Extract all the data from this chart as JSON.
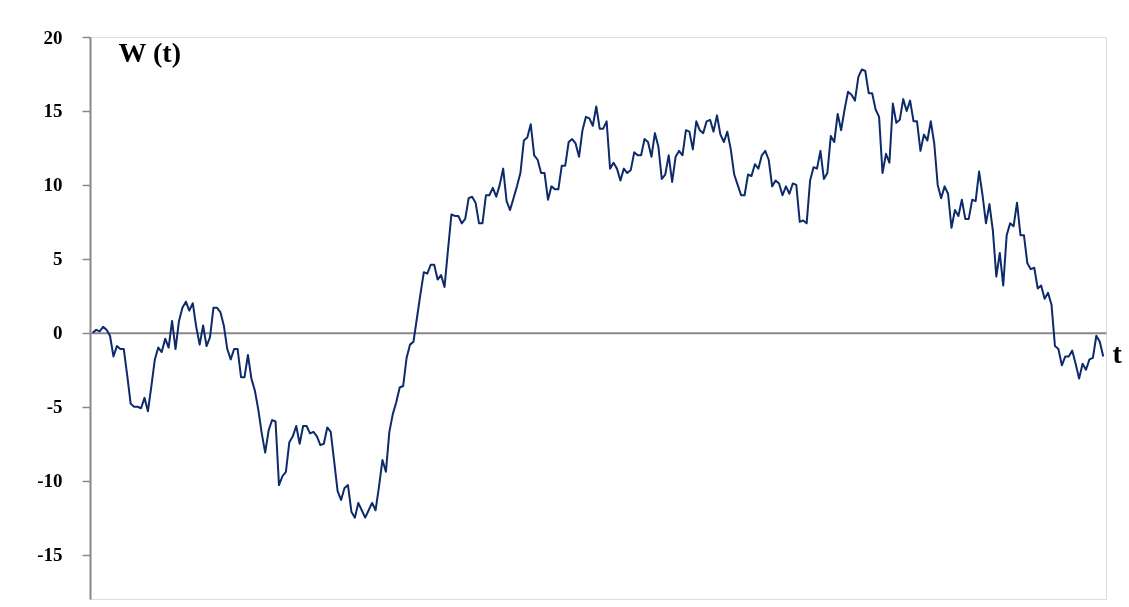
{
  "chart_data": {
    "type": "line",
    "xlabel": "t",
    "ylabel": "W (t)",
    "categories": [
      null,
      null,
      null,
      null,
      null,
      null,
      null,
      null,
      null,
      null,
      null,
      null,
      null,
      null,
      null,
      null,
      null,
      null,
      null,
      null,
      null,
      null,
      null,
      null,
      null,
      null,
      null,
      null,
      null,
      null,
      null,
      null,
      null,
      null,
      null,
      null,
      null,
      null,
      null,
      null,
      null,
      null,
      null,
      null,
      null,
      null,
      null,
      null,
      null,
      null,
      null,
      null,
      null,
      null,
      null,
      null,
      null,
      null,
      null,
      null,
      null,
      null,
      null,
      null,
      null,
      null,
      null,
      null,
      null,
      null,
      null,
      null,
      null,
      null,
      null,
      null,
      null,
      null,
      null,
      null,
      null,
      null,
      null,
      null,
      null,
      null,
      null,
      null,
      null,
      null,
      null,
      null,
      null,
      null,
      null,
      null,
      null,
      null,
      null,
      null,
      null,
      null,
      null,
      null,
      null,
      null,
      null,
      null,
      null,
      null,
      null,
      null,
      null,
      null,
      null,
      null,
      null,
      null,
      null,
      null,
      null,
      null,
      null,
      null,
      null,
      null,
      null,
      null,
      null,
      null,
      null,
      null,
      null,
      null,
      null,
      null,
      null,
      null,
      null,
      null,
      null,
      null,
      null,
      null,
      null,
      null,
      null,
      null,
      null,
      null,
      null,
      null,
      null,
      null,
      null,
      null,
      null,
      null,
      null,
      null,
      null,
      null,
      null,
      null,
      null,
      null,
      null,
      null,
      null,
      null,
      null,
      null,
      null,
      null,
      null,
      null,
      null,
      null,
      null,
      null,
      null,
      null,
      null,
      null,
      null,
      null,
      null,
      null,
      null,
      null,
      null,
      null,
      null,
      null,
      null,
      null,
      null,
      null,
      null,
      null,
      null,
      null,
      null,
      null,
      null,
      null,
      null,
      null,
      null,
      null,
      null,
      null,
      null,
      null,
      null,
      null,
      null,
      null,
      null,
      null,
      null,
      null,
      null,
      null,
      null,
      null,
      null,
      null,
      null,
      null,
      null,
      null,
      null,
      null,
      null,
      null,
      null,
      null,
      null,
      null,
      null,
      null,
      null,
      null,
      null,
      null,
      null,
      null,
      null,
      null,
      null,
      null,
      null,
      null,
      null,
      null,
      null,
      null,
      null,
      null,
      null,
      null,
      null,
      null,
      null,
      null,
      null,
      null,
      null,
      null,
      null,
      null,
      null,
      null,
      null,
      null,
      null,
      null,
      null,
      null,
      null,
      null,
      null,
      null,
      null,
      null,
      null,
      null,
      null,
      null,
      null,
      null,
      null,
      null
    ],
    "series": [
      {
        "color": "#0d2a6b",
        "values": [
          0,
          0.2,
          0.1,
          0.4,
          0.2,
          -0.2,
          -1.6,
          -0.9,
          -1.1,
          -1.1,
          -2.9,
          -4.8,
          -5.0,
          -5.0,
          -5.1,
          -4.4,
          -5.3,
          -3.6,
          -1.8,
          -1.0,
          -1.3,
          -0.4,
          -1.0,
          0.8,
          -1.1,
          0.8,
          1.7,
          2.1,
          1.5,
          2.0,
          0.4,
          -0.8,
          0.5,
          -0.9,
          -0.3,
          1.7,
          1.7,
          1.4,
          0.5,
          -1.1,
          -1.8,
          -1.1,
          -1.1,
          -3.0,
          -3.0,
          -1.5,
          -3.1,
          -3.9,
          -5.2,
          -6.8,
          -8.1,
          -6.6,
          -5.9,
          -6.0,
          -10.3,
          -9.7,
          -9.4,
          -7.4,
          -7.0,
          -6.3,
          -7.5,
          -6.3,
          -6.3,
          -6.8,
          -6.7,
          -7.0,
          -7.6,
          -7.5,
          -6.4,
          -6.7,
          -8.7,
          -10.7,
          -11.3,
          -10.5,
          -10.3,
          -12.1,
          -12.5,
          -11.5,
          -12.0,
          -12.5,
          -12.0,
          -11.5,
          -12.0,
          -10.4,
          -8.6,
          -9.4,
          -6.7,
          -5.5,
          -4.7,
          -3.7,
          -3.6,
          -1.7,
          -0.8,
          -0.6,
          1.0,
          2.6,
          4.1,
          4.0,
          4.6,
          4.6,
          3.6,
          3.9,
          3.1,
          5.6,
          8.0,
          7.9,
          7.9,
          7.4,
          7.7,
          9.1,
          9.2,
          8.8,
          7.4,
          7.4,
          9.3,
          9.3,
          9.8,
          9.2,
          10.0,
          11.1,
          8.9,
          8.3,
          9.1,
          9.9,
          10.8,
          13.0,
          13.2,
          14.1,
          12.0,
          11.7,
          10.8,
          10.8,
          9.0,
          9.9,
          9.7,
          9.7,
          11.3,
          11.3,
          12.9,
          13.1,
          12.8,
          11.9,
          13.7,
          14.6,
          14.5,
          14.0,
          15.3,
          13.8,
          13.8,
          14.3,
          11.1,
          11.5,
          11.1,
          10.3,
          11.1,
          10.8,
          11.0,
          12.2,
          12.0,
          12.0,
          13.1,
          12.9,
          11.9,
          13.5,
          12.6,
          10.4,
          10.7,
          12.0,
          10.2,
          11.9,
          12.3,
          12.0,
          13.7,
          13.6,
          12.4,
          14.3,
          13.7,
          13.5,
          14.3,
          14.4,
          13.6,
          14.7,
          13.4,
          12.9,
          13.6,
          12.4,
          10.7,
          10.0,
          9.3,
          9.3,
          10.7,
          10.6,
          11.4,
          11.1,
          12.0,
          12.3,
          11.7,
          9.9,
          10.3,
          10.1,
          9.3,
          9.9,
          9.4,
          10.1,
          10.0,
          7.5,
          7.6,
          7.4,
          10.3,
          11.2,
          11.1,
          12.3,
          10.4,
          10.8,
          13.3,
          12.9,
          14.8,
          13.7,
          15.1,
          16.3,
          16.1,
          15.7,
          17.3,
          17.8,
          17.7,
          16.2,
          16.2,
          15.1,
          14.6,
          10.8,
          12.1,
          11.5,
          15.5,
          14.2,
          14.4,
          15.8,
          15.0,
          15.7,
          14.3,
          14.3,
          12.3,
          13.4,
          13.0,
          14.3,
          12.8,
          10.0,
          9.1,
          9.9,
          9.4,
          7.1,
          8.3,
          7.9,
          9.0,
          7.7,
          7.7,
          9.0,
          8.9,
          10.9,
          9.3,
          7.4,
          8.7,
          6.9,
          3.8,
          5.4,
          3.2,
          6.6,
          7.4,
          7.2,
          8.8,
          6.6,
          6.6,
          4.7,
          4.3,
          4.4,
          3.0,
          3.2,
          2.3,
          2.7,
          1.9,
          -0.9,
          -1.1,
          -2.2,
          -1.6,
          -1.6,
          -1.2,
          -2.1,
          -3.1,
          -2.1,
          -2.5,
          -1.8,
          -1.7,
          -0.2,
          -0.6,
          -1.6
        ]
      }
    ],
    "ylim": [
      -18,
      20
    ],
    "yticks": [
      -15,
      -10,
      -5,
      0,
      5,
      10,
      15,
      20
    ],
    "tick_labels": "y"
  }
}
